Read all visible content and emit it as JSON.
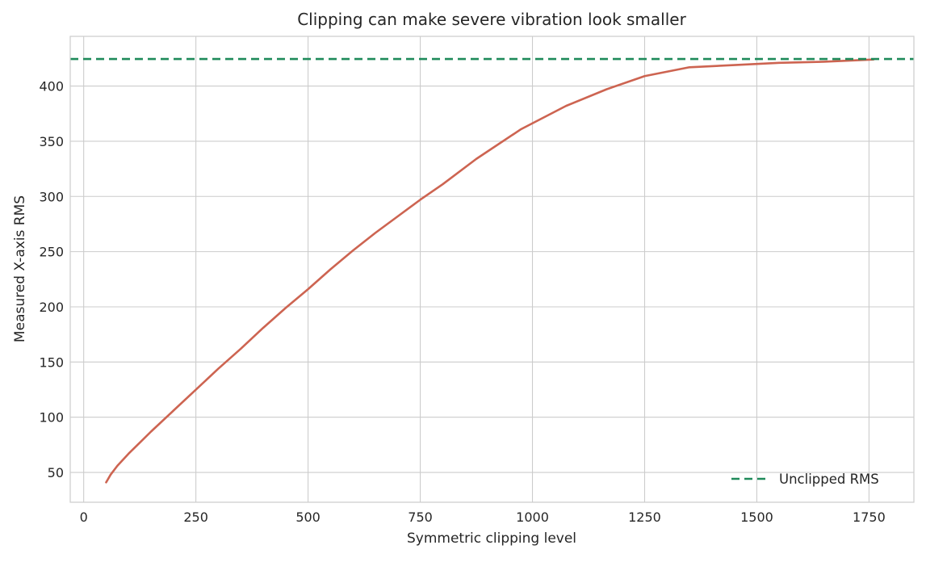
{
  "chart_data": {
    "type": "line",
    "title": "Clipping can make severe vibration look smaller",
    "xlabel": "Symmetric clipping level",
    "ylabel": "Measured X-axis RMS",
    "xlim": [
      -30,
      1850
    ],
    "ylim": [
      23,
      445
    ],
    "x_ticks": [
      0,
      250,
      500,
      750,
      1000,
      1250,
      1500,
      1750
    ],
    "y_ticks": [
      50,
      100,
      150,
      200,
      250,
      300,
      350,
      400
    ],
    "grid": true,
    "legend_position": "bottom-right",
    "series": [
      {
        "color": "#cd6451",
        "style": "solid",
        "x": [
          50,
          60,
          75,
          100,
          125,
          150,
          200,
          250,
          300,
          350,
          400,
          450,
          500,
          550,
          600,
          650,
          700,
          750,
          800,
          875,
          975,
          1075,
          1165,
          1250,
          1350,
          1450,
          1550,
          1650,
          1760
        ],
        "y": [
          41,
          48,
          56,
          67,
          77,
          87,
          106,
          125,
          144,
          162,
          181,
          199,
          216,
          234,
          251,
          267,
          282,
          297,
          311,
          334,
          361,
          382,
          397,
          409,
          417,
          419,
          421,
          422,
          424
        ]
      },
      {
        "name": "Unclipped RMS",
        "color": "#1f8a5a",
        "style": "dashed",
        "type": "hline",
        "y": 424.5
      }
    ]
  }
}
